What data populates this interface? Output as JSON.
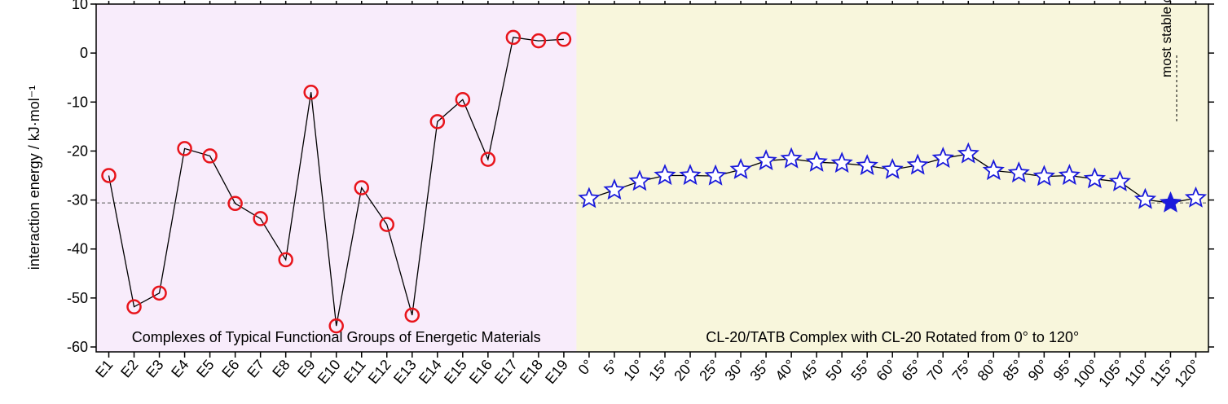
{
  "chart_data": {
    "type": "line",
    "y_label": "interaction energy / kJ·mol⁻¹",
    "categories": [
      "E1",
      "E2",
      "E3",
      "E4",
      "E5",
      "E6",
      "E7",
      "E8",
      "E9",
      "E10",
      "E11",
      "E12",
      "E13",
      "E14",
      "E15",
      "E16",
      "E17",
      "E18",
      "E19",
      "0°",
      "5°",
      "10°",
      "15°",
      "20°",
      "25°",
      "30°",
      "35°",
      "40°",
      "45°",
      "50°",
      "55°",
      "60°",
      "65°",
      "70°",
      "75°",
      "80°",
      "85°",
      "90°",
      "95°",
      "100°",
      "105°",
      "110°",
      "115°",
      "120°"
    ],
    "series": [
      {
        "marker": "circle",
        "color": "#e8141b",
        "line_color": "#000000",
        "region_label": "Complexes of Typical Functional Groups of Energetic Materials",
        "region_color": "#f8ecfb",
        "values": [
          -25,
          -51.8,
          -49,
          -19.5,
          -21,
          -30.7,
          -33.8,
          -42.2,
          -8,
          -55.7,
          -27.5,
          -35,
          -53.5,
          -14,
          -9.5,
          -21.7,
          3.2,
          2.5,
          2.8,
          null,
          null,
          null,
          null,
          null,
          null,
          null,
          null,
          null,
          null,
          null,
          null,
          null,
          null,
          null,
          null,
          null,
          null,
          null,
          null,
          null,
          null,
          null,
          null,
          null
        ]
      },
      {
        "marker": "star",
        "color": "#1a1adb",
        "line_color": "#000000",
        "region_label": "CL-20/TATB Complex with CL-20 Rotated from 0° to 120°",
        "region_color": "#f8f6dc",
        "filled_index": 42,
        "values": [
          null,
          null,
          null,
          null,
          null,
          null,
          null,
          null,
          null,
          null,
          null,
          null,
          null,
          null,
          null,
          null,
          null,
          null,
          null,
          -29.7,
          -28,
          -26.2,
          -25,
          -25,
          -25.1,
          -23.8,
          -22,
          -21.6,
          -22.3,
          -22.5,
          -23,
          -23.8,
          -22.9,
          -21.5,
          -20.6,
          -24,
          -24.5,
          -25.2,
          -25,
          -25.7,
          -26.3,
          -29.9,
          -30.6,
          -29.6
        ]
      }
    ],
    "reference_line": -30.6,
    "annotation": "most stable configuration",
    "ylim": [
      -61,
      10
    ],
    "yticks": [
      -60,
      -50,
      -40,
      -30,
      -20,
      -10,
      0,
      10
    ]
  }
}
